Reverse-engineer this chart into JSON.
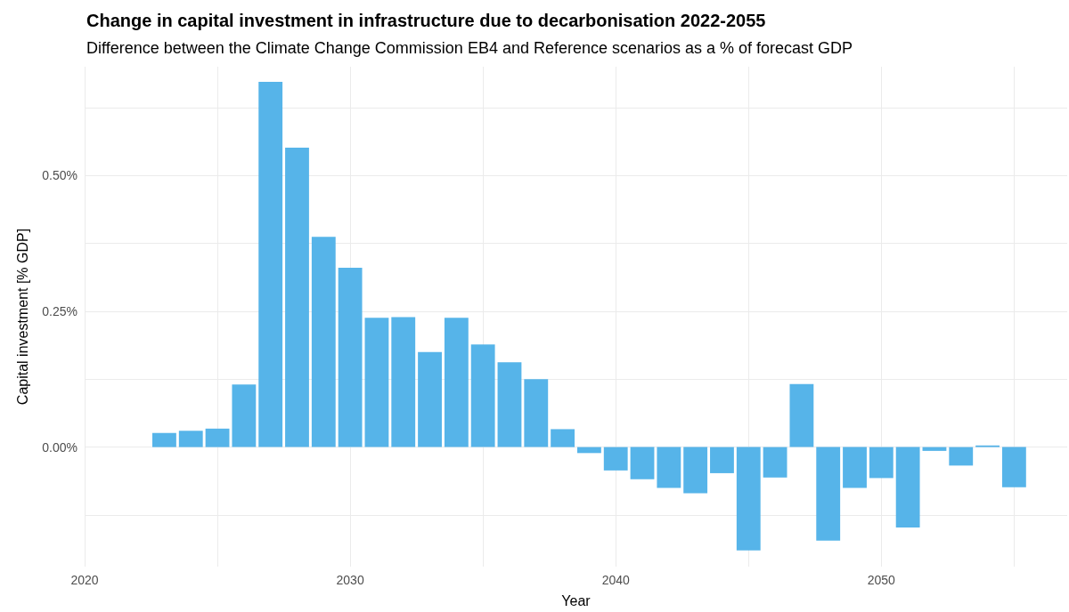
{
  "chart_data": {
    "type": "bar",
    "title": "Change in capital investment in infrastructure due to decarbonisation 2022-2055",
    "subtitle": "Difference between the Climate Change Commission EB4 and Reference scenarios as a % of forecast GDP",
    "xlabel": "Year",
    "ylabel": "Capital investment [% GDP]",
    "x": [
      2023,
      2024,
      2025,
      2026,
      2027,
      2028,
      2029,
      2030,
      2031,
      2032,
      2033,
      2034,
      2035,
      2036,
      2037,
      2038,
      2039,
      2040,
      2041,
      2042,
      2043,
      2044,
      2045,
      2046,
      2047,
      2048,
      2049,
      2050,
      2051,
      2052,
      2053,
      2054,
      2055
    ],
    "values": [
      0.026,
      0.03,
      0.034,
      0.115,
      0.672,
      0.551,
      0.387,
      0.33,
      0.238,
      0.239,
      0.175,
      0.238,
      0.189,
      0.156,
      0.125,
      0.033,
      -0.011,
      -0.043,
      -0.059,
      -0.075,
      -0.085,
      -0.048,
      -0.19,
      -0.056,
      0.116,
      -0.172,
      -0.075,
      -0.057,
      -0.148,
      -0.007,
      -0.034,
      0.003,
      -0.074
    ],
    "color": "#56b4e9",
    "xlim": [
      2020,
      2057
    ],
    "xticks": [
      2020,
      {
        "value": 2025,
        "label": null
      },
      2030,
      {
        "value": 2035,
        "label": null
      },
      2040,
      {
        "value": 2045,
        "label": null
      },
      2050,
      {
        "value": 2055,
        "label": null
      }
    ],
    "ylim": [
      -0.22,
      0.7
    ],
    "yticks": [
      {
        "value": -0.125,
        "label": null
      },
      {
        "value": 0,
        "label": "0.00%"
      },
      {
        "value": 0.125,
        "label": null
      },
      {
        "value": 0.25,
        "label": "0.25%"
      },
      {
        "value": 0.375,
        "label": null
      },
      {
        "value": 0.5,
        "label": "0.50%"
      },
      {
        "value": 0.625,
        "label": null
      }
    ],
    "grid": true
  }
}
